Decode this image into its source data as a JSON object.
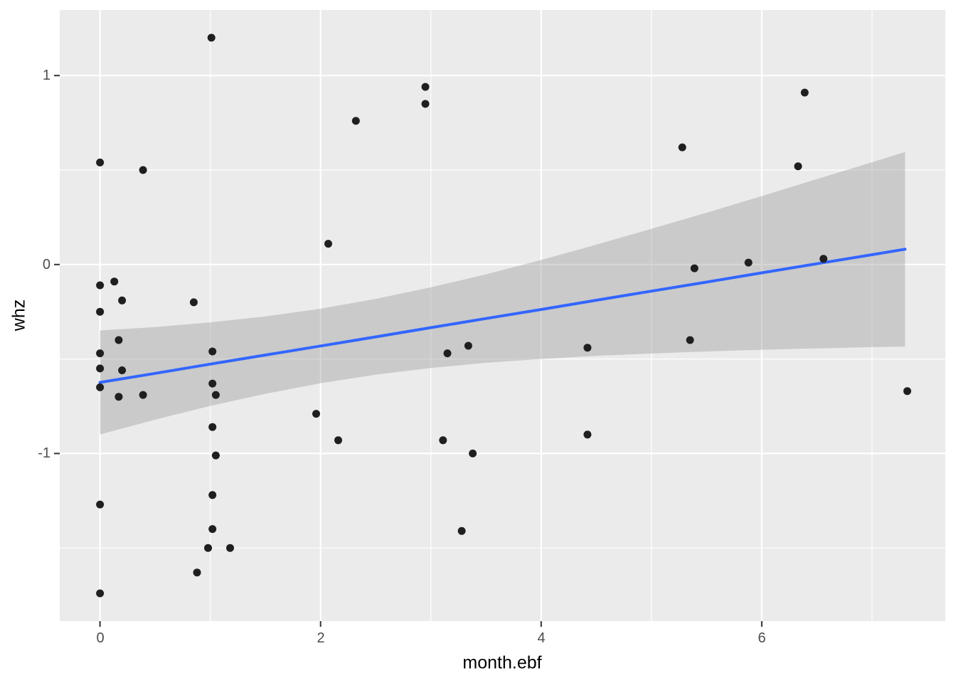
{
  "chart_data": {
    "type": "scatter",
    "title": "",
    "xlabel": "month.ebf",
    "ylabel": "whz",
    "xlim": [
      -0.365,
      7.665
    ],
    "ylim": [
      -1.887,
      1.347
    ],
    "x_ticks": [
      0,
      2,
      4,
      6
    ],
    "x_tick_labels": [
      "0",
      "2",
      "4",
      "6"
    ],
    "x_minor_ticks": [
      1,
      3,
      5,
      7
    ],
    "y_ticks": [
      1,
      0,
      -1
    ],
    "y_tick_labels": [
      "1",
      "0",
      "-1"
    ],
    "y_minor_ticks": [
      0.5,
      -0.5,
      -1.5
    ],
    "grid": "major+minor, white on grey panel",
    "legend": false,
    "points": [
      [
        0,
        0.54
      ],
      [
        0,
        -0.11
      ],
      [
        0,
        -0.25
      ],
      [
        0,
        -0.47
      ],
      [
        0,
        -0.55
      ],
      [
        0,
        -0.65
      ],
      [
        0,
        -1.27
      ],
      [
        0,
        -1.74
      ],
      [
        0.13,
        -0.09
      ],
      [
        0.17,
        -0.4
      ],
      [
        0.17,
        -0.7
      ],
      [
        0.2,
        -0.19
      ],
      [
        0.2,
        -0.56
      ],
      [
        0.39,
        0.5
      ],
      [
        0.39,
        -0.69
      ],
      [
        0.85,
        -0.2
      ],
      [
        0.88,
        -1.63
      ],
      [
        0.98,
        -1.5
      ],
      [
        1.01,
        1.2
      ],
      [
        1.02,
        -0.46
      ],
      [
        1.02,
        -0.63
      ],
      [
        1.05,
        -0.69
      ],
      [
        1.02,
        -0.86
      ],
      [
        1.05,
        -1.01
      ],
      [
        1.02,
        -1.22
      ],
      [
        1.02,
        -1.4
      ],
      [
        1.18,
        -1.5
      ],
      [
        1.96,
        -0.79
      ],
      [
        2.07,
        0.11
      ],
      [
        2.16,
        -0.93
      ],
      [
        2.32,
        0.76
      ],
      [
        2.95,
        0.94
      ],
      [
        2.95,
        0.85
      ],
      [
        3.11,
        -0.93
      ],
      [
        3.15,
        -0.47
      ],
      [
        3.28,
        -1.41
      ],
      [
        3.34,
        -0.43
      ],
      [
        3.38,
        -1.0
      ],
      [
        4.42,
        -0.44
      ],
      [
        4.42,
        -0.9
      ],
      [
        5.28,
        0.62
      ],
      [
        5.35,
        -0.4
      ],
      [
        5.39,
        -0.02
      ],
      [
        5.88,
        0.01
      ],
      [
        6.33,
        0.52
      ],
      [
        6.39,
        0.91
      ],
      [
        6.56,
        0.03
      ],
      [
        7.32,
        -0.67
      ]
    ],
    "smooth": {
      "method": "lm-style straight fit with confidence ribbon",
      "x": [
        0,
        0.5,
        1,
        1.5,
        2,
        2.5,
        3,
        3.5,
        4,
        4.5,
        5,
        5.5,
        6,
        6.5,
        7,
        7.3
      ],
      "fit": [
        -0.624,
        -0.576,
        -0.527,
        -0.479,
        -0.431,
        -0.383,
        -0.334,
        -0.286,
        -0.238,
        -0.189,
        -0.141,
        -0.093,
        -0.044,
        0.004,
        0.052,
        0.081
      ],
      "upper": [
        -0.349,
        -0.331,
        -0.306,
        -0.275,
        -0.234,
        -0.182,
        -0.121,
        -0.052,
        0.024,
        0.105,
        0.189,
        0.274,
        0.362,
        0.452,
        0.541,
        0.596
      ],
      "lower": [
        -0.899,
        -0.821,
        -0.748,
        -0.684,
        -0.628,
        -0.583,
        -0.548,
        -0.52,
        -0.5,
        -0.483,
        -0.471,
        -0.46,
        -0.451,
        -0.444,
        -0.437,
        -0.434
      ]
    },
    "style": {
      "background": "#FFFFFF",
      "panel_bg": "#EBEBEB",
      "grid_color": "#FFFFFF",
      "point_color": "#1F1F1F",
      "line_color": "#3366FF",
      "band_color": "rgba(153,153,153,0.4)",
      "tick_color": "#333333",
      "tick_label_color": "#4D4D4D",
      "axis_title_color": "#000000"
    }
  }
}
